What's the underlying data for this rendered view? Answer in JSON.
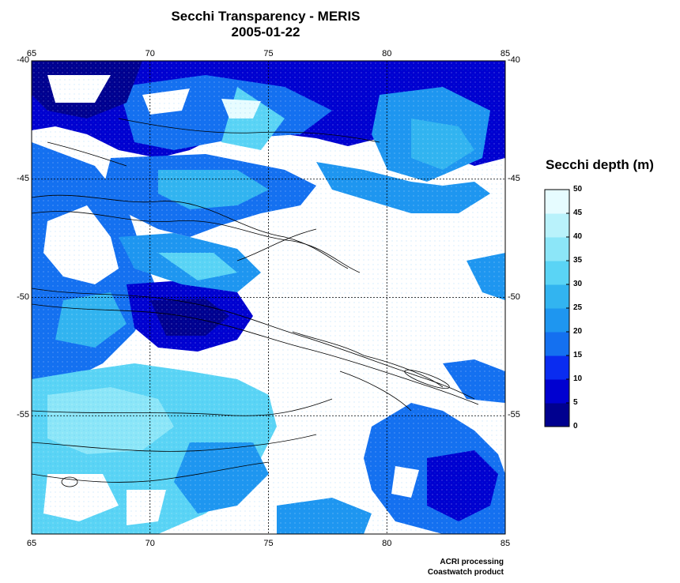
{
  "title": "Secchi Transparency - MERIS",
  "date": "2005-01-22",
  "map": {
    "lon_ticks": [
      "65",
      "70",
      "75",
      "80",
      "85"
    ],
    "lat_ticks": [
      "-40",
      "-45",
      "-50",
      "-55"
    ],
    "lon_range": [
      65,
      85
    ],
    "lat_range": [
      -60,
      -40
    ],
    "grid": "dashed",
    "palette": [
      "#00008f",
      "#0000d0",
      "#0a2cf0",
      "#1470f0",
      "#1e96f0",
      "#32b4f0",
      "#5ad4f5",
      "#8ce6f8",
      "#b9f2fb",
      "#e6fcff"
    ]
  },
  "legend": {
    "title": "Secchi depth (m)",
    "labels": [
      "50",
      "45",
      "40",
      "35",
      "30",
      "25",
      "20",
      "15",
      "10",
      "5",
      "0"
    ]
  },
  "credits": {
    "line1": "ACRI processing",
    "line2": "Coastwatch product"
  }
}
